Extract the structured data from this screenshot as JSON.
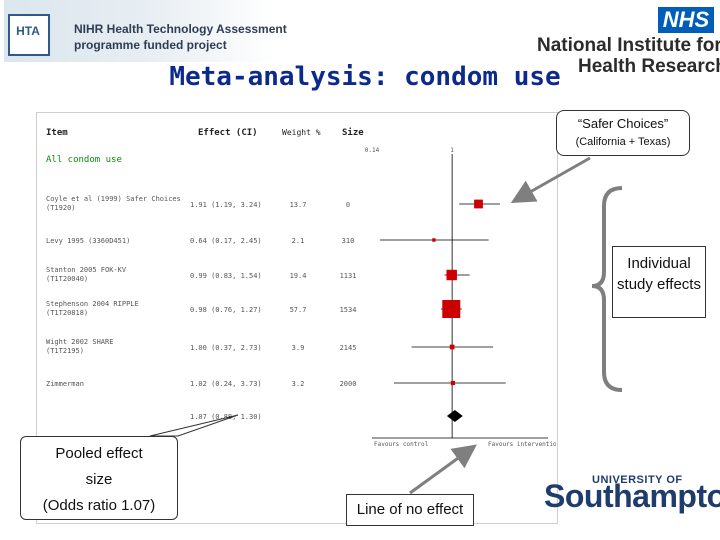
{
  "header": {
    "hta_badge": "HTA",
    "hta_line1": "NIHR Health Technology Assessment",
    "hta_line2": "programme funded project",
    "nhs": "NHS",
    "nihr_line1": "National Institute for",
    "nihr_line2": "Health Research"
  },
  "title": "Meta-analysis: condom use",
  "forest": {
    "col_item": "Item",
    "col_effect": "Effect (CI)",
    "col_weight": "Weight %",
    "col_size": "Size",
    "group_label": "All condom use",
    "axis_ticks": [
      {
        "value": 0.14,
        "label": "0.14"
      },
      {
        "value": 1,
        "label": "1"
      }
    ],
    "favours_left": "Favours control",
    "favours_right": "Favours intervention",
    "colors": {
      "study": "#cc0000",
      "diamond": "#000000",
      "green": "#0a8a0a",
      "line": "#000000"
    }
  },
  "chart_data": {
    "type": "forest",
    "x_scale": "log",
    "xlim": [
      0.14,
      7.1
    ],
    "null_value": 1,
    "studies": [
      {
        "name": "Coyle et al (1999) Safer Choices (T1920)",
        "effect_label": "1.91 (1.19, 3.24)",
        "or": 1.91,
        "lo": 1.19,
        "hi": 3.24,
        "weight_label": "13.7",
        "weight": 13.7,
        "size": "0"
      },
      {
        "name": "Levy 1995 (3360D451)",
        "effect_label": "0.64 (0.17, 2.45)",
        "or": 0.64,
        "lo": 0.17,
        "hi": 2.45,
        "weight_label": "2.1",
        "weight": 2.1,
        "size": "310"
      },
      {
        "name": "Stanton 2005 FOK-KV (T1T20040)",
        "effect_label": "0.99 (0.83, 1.54)",
        "or": 0.99,
        "lo": 0.83,
        "hi": 1.54,
        "weight_label": "19.4",
        "weight": 19.4,
        "size": "1131"
      },
      {
        "name": "Stephenson 2004 RIPPLE (T1T20818)",
        "effect_label": "0.98 (0.76, 1.27)",
        "or": 0.98,
        "lo": 0.76,
        "hi": 1.27,
        "weight_label": "57.7",
        "weight": 57.7,
        "size": "1534"
      },
      {
        "name": "Wight 2002 SHARE (T1T2195)",
        "effect_label": "1.00 (0.37, 2.73)",
        "or": 1.0,
        "lo": 0.37,
        "hi": 2.73,
        "weight_label": "3.9",
        "weight": 3.9,
        "size": "2145"
      },
      {
        "name": "Zimmerman",
        "effect_label": "1.02 (0.24, 3.73)",
        "or": 1.02,
        "lo": 0.24,
        "hi": 3.73,
        "weight_label": "3.2",
        "weight": 3.2,
        "size": "2000"
      }
    ],
    "pooled": {
      "effect_label": "1.07 (0.88, 1.30)",
      "or": 1.07,
      "lo": 0.88,
      "hi": 1.3
    }
  },
  "callouts": {
    "safer_line1": "“Safer Choices”",
    "safer_line2": "(California + Texas)",
    "individual": "Individual study effects",
    "pooled_line1": "Pooled effect",
    "pooled_line2": "size",
    "pooled_line3": "(Odds ratio 1.07)",
    "no_effect": "Line of no effect"
  },
  "footer": {
    "uni_small": "UNIVERSITY OF",
    "uni_big": "Southampton"
  }
}
